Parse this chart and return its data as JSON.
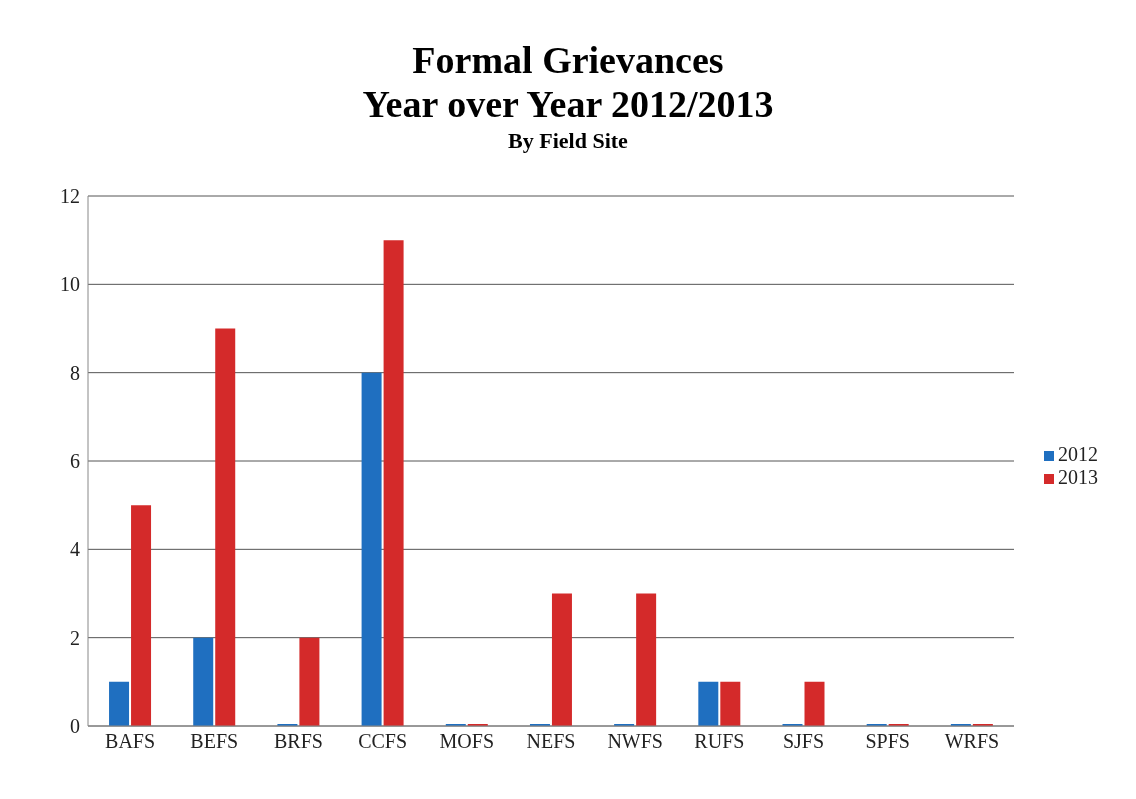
{
  "chart_data": {
    "type": "bar",
    "title": "Formal Grievances\nYear over Year 2012/2013",
    "subtitle": "By Field Site",
    "categories": [
      "BAFS",
      "BEFS",
      "BRFS",
      "CCFS",
      "MOFS",
      "NEFS",
      "NWFS",
      "RUFS",
      "SJFS",
      "SPFS",
      "WRFS"
    ],
    "series": [
      {
        "name": "2012",
        "color": "#1f6fc0",
        "values": [
          1,
          2,
          0,
          8,
          0,
          0,
          0,
          1,
          0,
          0,
          0
        ]
      },
      {
        "name": "2013",
        "color": "#d42a2a",
        "values": [
          5,
          9,
          2,
          11,
          0,
          3,
          3,
          1,
          1,
          0,
          0
        ]
      }
    ],
    "ylim": [
      0,
      12
    ],
    "yticks": [
      0,
      2,
      4,
      6,
      8,
      10,
      12
    ],
    "grid": "y",
    "legend": "right"
  }
}
